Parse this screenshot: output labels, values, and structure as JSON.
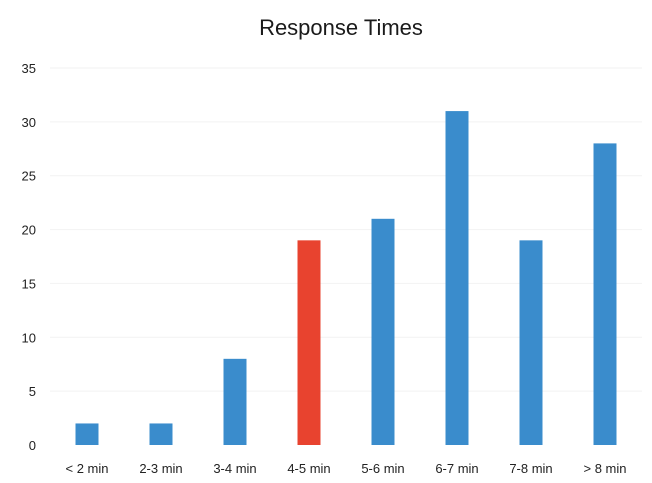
{
  "chart_data": {
    "type": "bar",
    "title": "Response Times",
    "xlabel": "",
    "ylabel": "",
    "categories": [
      "< 2 min",
      "2-3 min",
      "3-4 min",
      "4-5 min",
      "5-6 min",
      "6-7 min",
      "7-8 min",
      "> 8 min"
    ],
    "values": [
      2,
      2,
      8,
      19,
      21,
      31,
      19,
      28
    ],
    "ylim": [
      0,
      35
    ],
    "yticks": [
      0,
      5,
      10,
      15,
      20,
      25,
      30,
      35
    ],
    "highlight_index": 3,
    "colors": {
      "bar": "#3a8ccc",
      "highlight": "#e8432f"
    },
    "grid": true,
    "legend": "none"
  }
}
